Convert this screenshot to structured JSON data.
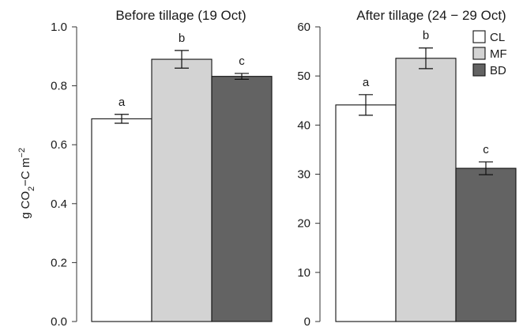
{
  "ylabel": {
    "main": "g CO",
    "subscript": "2",
    "mid": "−C m",
    "superscript": "−2"
  },
  "legend": [
    {
      "label": "CL",
      "color": "#ffffff"
    },
    {
      "label": "MF",
      "color": "#d3d3d3"
    },
    {
      "label": "BD",
      "color": "#636363"
    }
  ],
  "chart_data": [
    {
      "type": "bar",
      "title": "Before tillage (19 Oct)",
      "categories": [
        "CL",
        "MF",
        "BD"
      ],
      "values": [
        0.688,
        0.89,
        0.832
      ],
      "error": [
        0.015,
        0.03,
        0.01
      ],
      "significance": [
        "a",
        "b",
        "c"
      ],
      "colors": [
        "#ffffff",
        "#d3d3d3",
        "#636363"
      ],
      "ylim": [
        0,
        1.0
      ],
      "yticks": [
        0.0,
        0.2,
        0.4,
        0.6,
        0.8,
        1.0
      ],
      "ytick_labels": [
        "0.0",
        "0.2",
        "0.4",
        "0.6",
        "0.8",
        "1.0"
      ],
      "ylabel": "g CO2−C m−2",
      "xlabel": ""
    },
    {
      "type": "bar",
      "title": "After tillage (24 − 29 Oct)",
      "categories": [
        "CL",
        "MF",
        "BD"
      ],
      "values": [
        44.1,
        53.6,
        31.2
      ],
      "error": [
        2.1,
        2.1,
        1.3
      ],
      "significance": [
        "a",
        "b",
        "c"
      ],
      "colors": [
        "#ffffff",
        "#d3d3d3",
        "#636363"
      ],
      "ylim": [
        0,
        60
      ],
      "yticks": [
        0,
        10,
        20,
        30,
        40,
        50,
        60
      ],
      "ytick_labels": [
        "0",
        "10",
        "20",
        "30",
        "40",
        "50",
        "60"
      ],
      "legend": [
        "CL",
        "MF",
        "BD"
      ],
      "legend_position": "top-right",
      "xlabel": ""
    }
  ]
}
